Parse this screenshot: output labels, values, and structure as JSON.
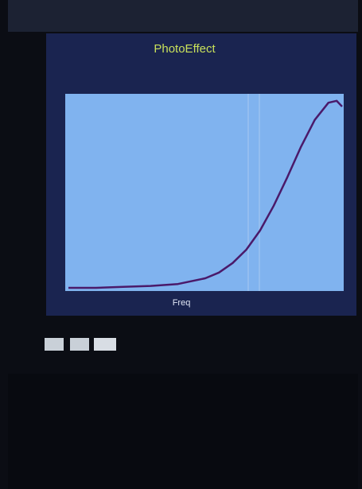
{
  "chart_data": {
    "type": "line",
    "title": "PhotoEffect",
    "x_label": "Freq",
    "x": [
      0,
      0.1,
      0.2,
      0.3,
      0.4,
      0.5,
      0.55,
      0.6,
      0.65,
      0.7,
      0.75,
      0.8,
      0.85,
      0.9,
      0.95,
      0.98,
      1.0
    ],
    "series": [
      {
        "color": "#4a1a6a",
        "values": [
          0,
          0,
          0.005,
          0.01,
          0.02,
          0.05,
          0.08,
          0.13,
          0.2,
          0.3,
          0.43,
          0.58,
          0.74,
          0.88,
          0.97,
          0.98,
          0.95
        ]
      }
    ],
    "xlim": [
      0,
      1
    ],
    "ylim": [
      0,
      1
    ]
  }
}
